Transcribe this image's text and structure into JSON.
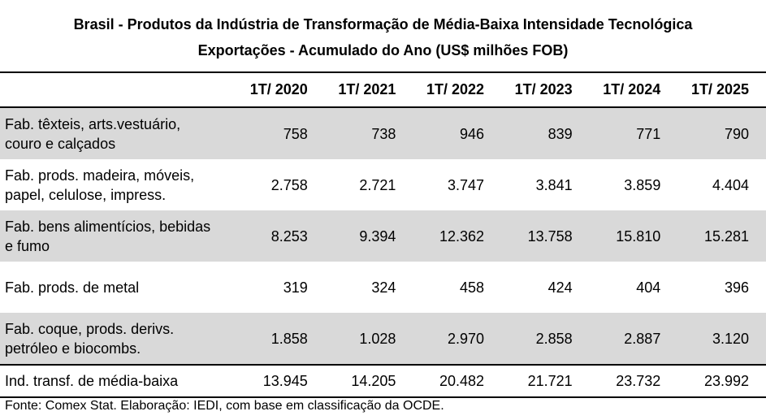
{
  "title_line1": "Brasil - Produtos da Indústria de Transformação de Média-Baixa Intensidade Tecnológica",
  "title_line2": "Exportações - Acumulado do Ano (US$ milhões FOB)",
  "source": "Fonte: Comex Stat. Elaboração: IEDI, com base em classificação da OCDE.",
  "chart_data": {
    "type": "table",
    "title": "Brasil - Produtos da Indústria de Transformação de Média-Baixa Intensidade Tecnológica Exportações - Acumulado do Ano (US$ milhões FOB)",
    "columns": [
      "1T/ 2020",
      "1T/ 2021",
      "1T/ 2022",
      "1T/ 2023",
      "1T/ 2024",
      "1T/ 2025"
    ],
    "rows": [
      {
        "label": "Fab. têxteis, arts.vestuário, couro e calçados",
        "values": [
          "758",
          "738",
          "946",
          "839",
          "771",
          "790"
        ]
      },
      {
        "label": "Fab. prods. madeira, móveis, papel, celulose, impress.",
        "values": [
          "2.758",
          "2.721",
          "3.747",
          "3.841",
          "3.859",
          "4.404"
        ]
      },
      {
        "label": "Fab. bens alimentícios, bebidas e fumo",
        "values": [
          "8.253",
          "9.394",
          "12.362",
          "13.758",
          "15.810",
          "15.281"
        ]
      },
      {
        "label": "Fab. prods. de metal",
        "values": [
          "319",
          "324",
          "458",
          "424",
          "404",
          "396"
        ]
      },
      {
        "label": "Fab. coque, prods. derivs. petróleo e biocombs.",
        "values": [
          "1.858",
          "1.028",
          "2.970",
          "2.858",
          "2.887",
          "3.120"
        ]
      }
    ],
    "total": {
      "label": "Ind. transf. de média-baixa",
      "values": [
        "13.945",
        "14.205",
        "20.482",
        "21.721",
        "23.732",
        "23.992"
      ]
    }
  }
}
